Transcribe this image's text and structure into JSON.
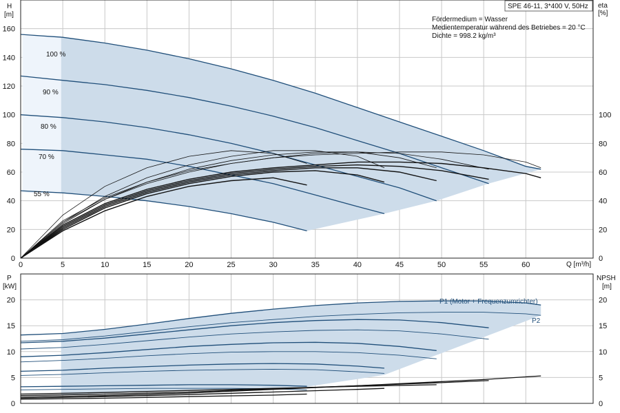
{
  "chart_data": [
    {
      "id": "head",
      "type": "line",
      "title": "SPE 46-11, 3*400 V, 50Hz",
      "notes": [
        "Fördermedium = Wasser",
        "Medientemperatur während des Betriebes = 20 °C",
        "Dichte = 998.2 kg/m³"
      ],
      "xlabel": "Q [m³/h]",
      "ylabel_left": "H",
      "ylabel_left_unit": "[m]",
      "ylabel_right": "eta",
      "ylabel_right_unit": "[%]",
      "xlim": [
        0,
        68
      ],
      "ylim": [
        0,
        180
      ],
      "x_ticks": [
        0,
        5,
        10,
        15,
        20,
        25,
        30,
        35,
        40,
        45,
        50,
        55,
        60
      ],
      "y_ticks_left": [
        0,
        20,
        40,
        60,
        80,
        100,
        120,
        140,
        160
      ],
      "y_ticks_right": [
        0,
        20,
        40,
        60,
        80,
        100
      ],
      "op_region": {
        "x_min": 4.8,
        "corners": [
          [
            4.8,
            155
          ],
          [
            61.8,
            62
          ],
          [
            34,
            19
          ],
          [
            4.8,
            46
          ]
        ]
      },
      "curves": [
        {
          "name": "100 %",
          "color": "#1f4e79",
          "x": [
            0,
            5,
            10,
            15,
            20,
            25,
            30,
            35,
            40,
            45,
            50,
            55,
            60,
            61.8
          ],
          "y": [
            156,
            154,
            150,
            145,
            139,
            132,
            124,
            115,
            105,
            95,
            85,
            75,
            64,
            62
          ]
        },
        {
          "name": "90 %",
          "color": "#1f4e79",
          "x": [
            0,
            5,
            10,
            15,
            20,
            25,
            30,
            35,
            40,
            45,
            50,
            55.6
          ],
          "y": [
            127,
            124,
            121,
            117,
            112,
            106,
            99,
            91,
            82,
            73,
            63,
            52
          ]
        },
        {
          "name": "80 %",
          "color": "#1f4e79",
          "x": [
            0,
            5,
            10,
            15,
            20,
            25,
            30,
            35,
            40,
            45,
            49.4
          ],
          "y": [
            100,
            98,
            95,
            91,
            86,
            80,
            73,
            65,
            57,
            49,
            40
          ]
        },
        {
          "name": "70 %",
          "color": "#1f4e79",
          "x": [
            0,
            5,
            10,
            15,
            20,
            25,
            30,
            35,
            40,
            43.2
          ],
          "y": [
            76,
            75,
            72,
            69,
            64,
            58,
            52,
            44,
            36,
            31
          ]
        },
        {
          "name": "55 %",
          "color": "#1f4e79",
          "x": [
            0,
            5,
            10,
            15,
            20,
            25,
            30,
            34
          ],
          "y": [
            47,
            45.5,
            43,
            40,
            36,
            31,
            25,
            19
          ]
        }
      ],
      "eta_curves": [
        {
          "x": [
            0,
            5,
            10,
            15,
            20,
            25,
            30,
            35,
            40,
            45,
            50,
            55,
            60,
            61.8
          ],
          "y": [
            0,
            23,
            38,
            48,
            55,
            60,
            63,
            65,
            67,
            67,
            66,
            63,
            59,
            56
          ]
        },
        {
          "x": [
            0,
            5,
            10,
            15,
            20,
            25,
            30,
            35,
            40,
            45,
            50,
            55,
            60,
            61.8
          ],
          "y": [
            0,
            26,
            42,
            53,
            61,
            66,
            70,
            72,
            73,
            74,
            74,
            72,
            67,
            63
          ]
        },
        {
          "x": [
            0,
            5,
            10,
            15,
            20,
            25,
            30,
            35,
            40,
            45,
            50,
            55.6
          ],
          "y": [
            0,
            22,
            37,
            47,
            54,
            59,
            62,
            64,
            65,
            64,
            61,
            55
          ]
        },
        {
          "x": [
            0,
            5,
            10,
            15,
            20,
            25,
            30,
            35,
            40,
            45,
            50,
            55.6
          ],
          "y": [
            0,
            25,
            41,
            52,
            60,
            66,
            70,
            73,
            74,
            73,
            69,
            62
          ]
        },
        {
          "x": [
            0,
            5,
            10,
            15,
            20,
            25,
            30,
            35,
            40,
            45,
            49.4
          ],
          "y": [
            0,
            21,
            36,
            46,
            53,
            58,
            61,
            63,
            63,
            60,
            54
          ]
        },
        {
          "x": [
            0,
            5,
            10,
            15,
            20,
            25,
            30,
            35,
            40,
            45,
            49.4
          ],
          "y": [
            0,
            24,
            41,
            53,
            62,
            68,
            72,
            74,
            74,
            70,
            63
          ]
        },
        {
          "x": [
            0,
            5,
            10,
            15,
            20,
            25,
            30,
            35,
            40,
            43.2
          ],
          "y": [
            0,
            20,
            35,
            45,
            52,
            57,
            60,
            61,
            58,
            53
          ]
        },
        {
          "x": [
            0,
            5,
            10,
            15,
            20,
            25,
            30,
            35,
            40,
            43.2
          ],
          "y": [
            0,
            25,
            43,
            56,
            65,
            71,
            75,
            75,
            71,
            63
          ]
        },
        {
          "x": [
            0,
            5,
            10,
            15,
            20,
            25,
            30,
            34
          ],
          "y": [
            0,
            19,
            33,
            43,
            50,
            54,
            56,
            51
          ]
        },
        {
          "x": [
            0,
            5,
            10,
            15,
            20,
            25,
            30,
            34
          ],
          "y": [
            0,
            30,
            50,
            63,
            71,
            75,
            73,
            66
          ]
        }
      ]
    },
    {
      "id": "power",
      "type": "line",
      "xlim": [
        0,
        68
      ],
      "ylim": [
        0,
        25
      ],
      "ylabel_left": "P",
      "ylabel_left_unit": "[kW]",
      "ylabel_right": "NPSH",
      "ylabel_right_unit": "[m]",
      "y_ticks_left": [
        0,
        5,
        10,
        15,
        20
      ],
      "y_ticks_right": [
        0,
        5,
        10,
        15,
        20
      ],
      "op_region": {
        "corners": [
          [
            4.8,
            13.5
          ],
          [
            61.8,
            19
          ],
          [
            43.2,
            5.5
          ],
          [
            4.8,
            1.7
          ]
        ]
      },
      "series_labels": [
        "P1 (Motor + Frequenzumrichter)",
        "P2"
      ],
      "p1_curves": [
        {
          "x": [
            0,
            5,
            10,
            15,
            20,
            25,
            30,
            35,
            40,
            45,
            50,
            55,
            60,
            61.8
          ],
          "y": [
            13.2,
            13.5,
            14.3,
            15.3,
            16.4,
            17.4,
            18.2,
            18.9,
            19.4,
            19.7,
            19.8,
            19.8,
            19.4,
            19.0
          ]
        },
        {
          "x": [
            0,
            5,
            10,
            15,
            20,
            25,
            30,
            35,
            40,
            45,
            50,
            55.6
          ],
          "y": [
            11.7,
            12.0,
            12.6,
            13.4,
            14.2,
            15.0,
            15.6,
            16.0,
            16.2,
            16.1,
            15.6,
            14.6
          ]
        },
        {
          "x": [
            0,
            5,
            10,
            15,
            20,
            25,
            30,
            35,
            40,
            45,
            49.4
          ],
          "y": [
            9.0,
            9.3,
            9.8,
            10.4,
            11.0,
            11.4,
            11.7,
            11.8,
            11.6,
            11.0,
            10.2
          ]
        },
        {
          "x": [
            0,
            5,
            10,
            15,
            20,
            25,
            30,
            35,
            40,
            43.2
          ],
          "y": [
            6.2,
            6.4,
            6.8,
            7.1,
            7.4,
            7.6,
            7.7,
            7.6,
            7.2,
            6.8
          ]
        },
        {
          "x": [
            0,
            5,
            10,
            15,
            20,
            25,
            30,
            34
          ],
          "y": [
            3.2,
            3.3,
            3.4,
            3.5,
            3.6,
            3.6,
            3.5,
            3.3
          ]
        }
      ],
      "p2_curves": [
        {
          "x": [
            0,
            5,
            10,
            15,
            20,
            25,
            30,
            35,
            40,
            45,
            50,
            55,
            60,
            61.8
          ],
          "y": [
            12.0,
            12.3,
            13.0,
            13.9,
            14.8,
            15.6,
            16.2,
            16.8,
            17.2,
            17.5,
            17.6,
            17.6,
            17.3,
            17.0
          ]
        },
        {
          "x": [
            0,
            5,
            10,
            15,
            20,
            25,
            30,
            35,
            40,
            45,
            50,
            55.6
          ],
          "y": [
            10.5,
            10.8,
            11.4,
            12.1,
            12.8,
            13.4,
            13.8,
            14.1,
            14.2,
            14.0,
            13.4,
            12.4
          ]
        },
        {
          "x": [
            0,
            5,
            10,
            15,
            20,
            25,
            30,
            35,
            40,
            45,
            49.4
          ],
          "y": [
            8.0,
            8.3,
            8.7,
            9.2,
            9.6,
            9.9,
            10.0,
            10.0,
            9.8,
            9.3,
            8.6
          ]
        },
        {
          "x": [
            0,
            5,
            10,
            15,
            20,
            25,
            30,
            35,
            40,
            43.2
          ],
          "y": [
            5.4,
            5.6,
            5.9,
            6.2,
            6.4,
            6.5,
            6.6,
            6.5,
            6.1,
            5.8
          ]
        },
        {
          "x": [
            0,
            5,
            10,
            15,
            20,
            25,
            30,
            34
          ],
          "y": [
            2.6,
            2.7,
            2.8,
            2.9,
            2.9,
            2.9,
            2.8,
            2.6
          ]
        }
      ],
      "npsh_curves": [
        {
          "x": [
            0,
            10,
            20,
            30,
            40,
            50,
            55,
            61.8
          ],
          "y": [
            1.2,
            1.5,
            2.0,
            2.7,
            3.4,
            4.2,
            4.6,
            5.3
          ]
        },
        {
          "x": [
            0,
            10,
            20,
            30,
            40,
            50,
            55.6
          ],
          "y": [
            1.5,
            1.8,
            2.2,
            2.8,
            3.4,
            4.0,
            4.4
          ]
        },
        {
          "x": [
            0,
            10,
            20,
            30,
            40,
            49.4
          ],
          "y": [
            1.8,
            2.1,
            2.5,
            2.9,
            3.3,
            3.6
          ]
        },
        {
          "x": [
            0,
            10,
            20,
            30,
            40,
            43.2
          ],
          "y": [
            1.0,
            1.3,
            1.7,
            2.2,
            2.7,
            2.9
          ]
        },
        {
          "x": [
            0,
            10,
            20,
            30,
            34
          ],
          "y": [
            0.8,
            1.0,
            1.3,
            1.6,
            1.8
          ]
        }
      ]
    }
  ]
}
